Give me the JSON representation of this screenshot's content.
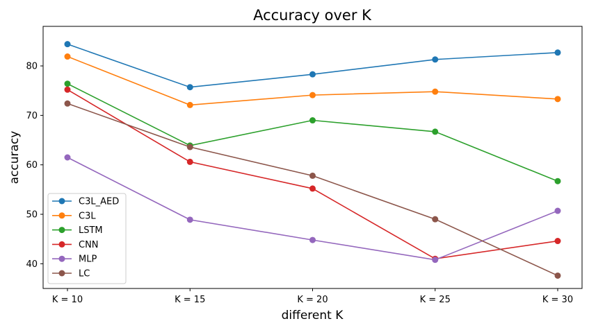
{
  "chart_data": {
    "type": "line",
    "title": "Accuracy over K",
    "xlabel": "different K",
    "ylabel": "accuracy",
    "categories": [
      "K = 10",
      "K = 15",
      "K = 20",
      "K = 25",
      "K = 30"
    ],
    "ylim": [
      35,
      88
    ],
    "yticks": [
      40,
      50,
      60,
      70,
      80
    ],
    "grid": false,
    "legend_position": "lower-left",
    "series": [
      {
        "name": "C3L_AED",
        "color": "#1f77b4",
        "values": [
          84.4,
          75.7,
          78.3,
          81.3,
          82.7
        ]
      },
      {
        "name": "C3L",
        "color": "#ff7f0e",
        "values": [
          81.9,
          72.1,
          74.1,
          74.8,
          73.3
        ]
      },
      {
        "name": "LSTM",
        "color": "#2ca02c",
        "values": [
          76.4,
          63.9,
          69.0,
          66.7,
          56.7
        ]
      },
      {
        "name": "CNN",
        "color": "#d62728",
        "values": [
          75.2,
          60.6,
          55.2,
          41.0,
          44.6
        ]
      },
      {
        "name": "MLP",
        "color": "#9467bd",
        "values": [
          61.5,
          48.9,
          44.8,
          40.8,
          50.7
        ]
      },
      {
        "name": "LC",
        "color": "#8c564b",
        "values": [
          72.4,
          63.6,
          57.8,
          49.0,
          37.6
        ]
      }
    ]
  }
}
